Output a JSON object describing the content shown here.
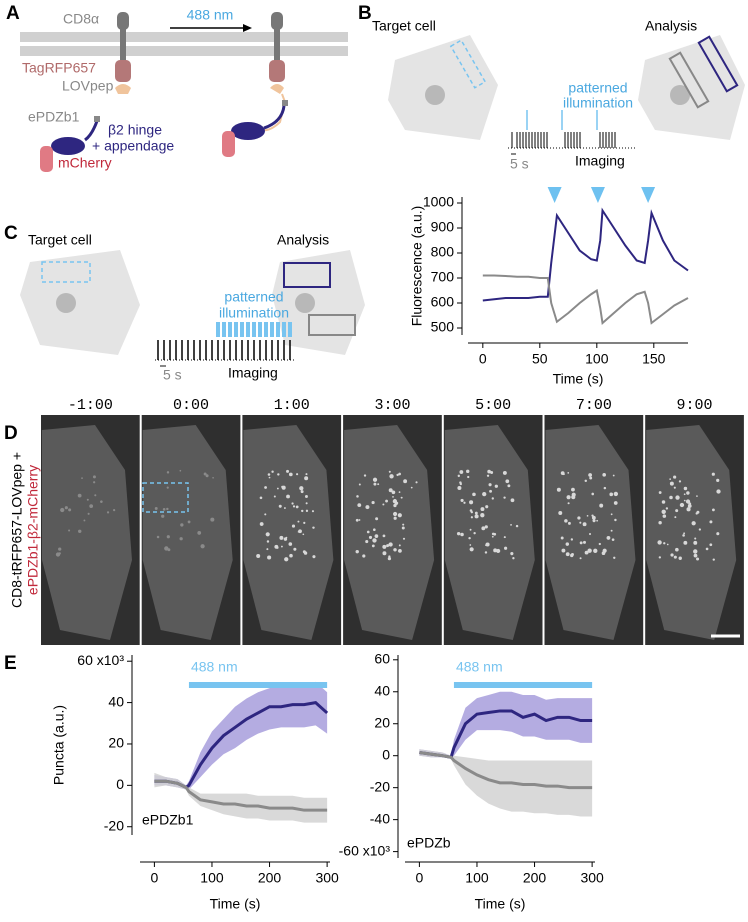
{
  "panel_a": {
    "label": "A",
    "cd8": "CD8α",
    "light": "488 nm",
    "tagrfp": "TagRFP657",
    "lovpep": "LOVpep",
    "epdz": "ePDZb1",
    "hinge": "β2 hinge",
    "appendage": "+ appendage",
    "mcherry": "mCherry"
  },
  "panel_b": {
    "label": "B",
    "target": "Target cell",
    "analysis": "Analysis",
    "illum": [
      "patterned",
      "illumination"
    ],
    "scale": "5 s",
    "imaging": "Imaging"
  },
  "panel_c": {
    "label": "C",
    "target": "Target cell",
    "analysis": "Analysis",
    "illum": [
      "patterned",
      "illumination"
    ],
    "scale": "5 s",
    "imaging": "Imaging"
  },
  "panel_d": {
    "label": "D",
    "times": [
      "-1:00",
      "0:00",
      "1:00",
      "3:00",
      "5:00",
      "7:00",
      "9:00"
    ],
    "ylabel": [
      "CD8-tRFP657-LOVpep +",
      "ePDZb1-β2-mCherry"
    ]
  },
  "panel_e": {
    "label": "E"
  },
  "chart_data": [
    {
      "type": "line",
      "xlabel": "Time (s)",
      "ylabel": "Fluorescence (a.u.)",
      "xlim": [
        -13,
        180
      ],
      "ylim": [
        472,
        1024
      ],
      "xticks": [
        0,
        50,
        100,
        150
      ],
      "yticks": [
        500,
        600,
        700,
        800,
        900,
        1000
      ],
      "x": [
        0,
        10,
        20,
        30,
        40,
        50,
        57,
        60,
        65,
        75,
        85,
        95,
        100,
        103,
        105,
        115,
        125,
        135,
        142,
        145,
        148,
        158,
        168,
        180
      ],
      "series": [
        {
          "color": "#2e2680",
          "values": [
            610,
            615,
            620,
            620,
            620,
            625,
            625,
            760,
            950,
            880,
            810,
            775,
            770,
            850,
            970,
            900,
            830,
            770,
            760,
            850,
            960,
            850,
            770,
            730
          ]
        },
        {
          "color": "#8a8a8a",
          "values": [
            710,
            710,
            708,
            705,
            705,
            700,
            700,
            600,
            525,
            560,
            600,
            635,
            650,
            580,
            520,
            560,
            600,
            635,
            645,
            600,
            520,
            555,
            590,
            620
          ]
        }
      ],
      "illumination_x": [
        63,
        101,
        145
      ],
      "marker_color": "#6ec1f0"
    },
    {
      "type": "line",
      "xlabel": "Time (s)",
      "ylabel": "Puncta (a.u.)",
      "annotation": "ePDZb1",
      "xlim": [
        -25,
        305
      ],
      "ylim": [
        -24,
        63
      ],
      "xticks": [
        0,
        100,
        200,
        300
      ],
      "yticks": [
        -20,
        0,
        20,
        40,
        {
          "value": 60,
          "label": "60 x10³"
        }
      ],
      "stimulus": {
        "label": "488 nm",
        "start": 60,
        "end": 300,
        "color": "#78c4f0"
      },
      "x": [
        0,
        20,
        40,
        55,
        60,
        80,
        100,
        120,
        140,
        160,
        180,
        200,
        220,
        240,
        260,
        280,
        300
      ],
      "series": [
        {
          "color": "#2e2680",
          "band_color": "#a79ddc",
          "values": [
            2,
            2,
            1,
            -1,
            0,
            10,
            18,
            24,
            28,
            32,
            35,
            38,
            38,
            39,
            39,
            40,
            35
          ],
          "lower": [
            0,
            0,
            -1,
            -2,
            -2,
            4,
            10,
            15,
            18,
            22,
            25,
            27,
            28,
            28,
            28,
            29,
            25
          ],
          "upper": [
            5,
            4,
            3,
            0,
            2,
            16,
            26,
            32,
            38,
            42,
            45,
            47,
            48,
            48,
            49,
            50,
            45
          ]
        },
        {
          "color": "#8a8a8a",
          "band_color": "#d2d2d2",
          "values": [
            2,
            2,
            1,
            -1,
            -3,
            -7,
            -8,
            -9,
            -9,
            -10,
            -10,
            -11,
            -11,
            -11,
            -12,
            -12,
            -12
          ],
          "lower": [
            -1,
            0,
            -1,
            -2,
            -5,
            -10,
            -12,
            -14,
            -15,
            -16,
            -16,
            -17,
            -17,
            -17,
            -18,
            -18,
            -18
          ],
          "upper": [
            6,
            4,
            3,
            0,
            -1,
            -4,
            -4,
            -4,
            -4,
            -4,
            -5,
            -5,
            -5,
            -5,
            -6,
            -6,
            -6
          ]
        }
      ]
    },
    {
      "type": "line",
      "xlabel": "Time (s)",
      "annotation": "ePDZb",
      "xlim": [
        -25,
        305
      ],
      "ylim": [
        -64,
        63
      ],
      "xticks": [
        0,
        100,
        200,
        300
      ],
      "yticks": [
        {
          "value": -60,
          "label": "-60 x10³"
        },
        -40,
        -20,
        0,
        20,
        40,
        60
      ],
      "stimulus": {
        "label": "488 nm",
        "start": 60,
        "end": 300,
        "color": "#78c4f0"
      },
      "x": [
        0,
        20,
        40,
        55,
        60,
        80,
        100,
        120,
        140,
        160,
        180,
        200,
        220,
        240,
        260,
        280,
        300
      ],
      "series": [
        {
          "color": "#2e2680",
          "band_color": "#a79ddc",
          "values": [
            2,
            1,
            0,
            -1,
            5,
            20,
            26,
            27,
            28,
            28,
            24,
            26,
            22,
            24,
            24,
            22,
            22
          ],
          "lower": [
            0,
            -1,
            -1,
            -2,
            0,
            10,
            16,
            16,
            16,
            15,
            12,
            12,
            10,
            10,
            10,
            8,
            8
          ],
          "upper": [
            4,
            3,
            2,
            0,
            10,
            30,
            36,
            38,
            40,
            40,
            38,
            38,
            35,
            36,
            36,
            36,
            36
          ]
        },
        {
          "color": "#8a8a8a",
          "band_color": "#d2d2d2",
          "values": [
            2,
            1,
            0,
            -1,
            -3,
            -8,
            -12,
            -15,
            -17,
            -17,
            -18,
            -18,
            -19,
            -19,
            -20,
            -20,
            -20
          ],
          "lower": [
            0,
            -1,
            -1,
            -2,
            -6,
            -18,
            -25,
            -30,
            -33,
            -35,
            -35,
            -36,
            -36,
            -37,
            -37,
            -38,
            -38
          ],
          "upper": [
            4,
            3,
            2,
            0,
            0,
            -1,
            -2,
            -3,
            -3,
            -3,
            -3,
            -3,
            -3,
            -3,
            -3,
            -3,
            -3
          ]
        }
      ]
    }
  ]
}
